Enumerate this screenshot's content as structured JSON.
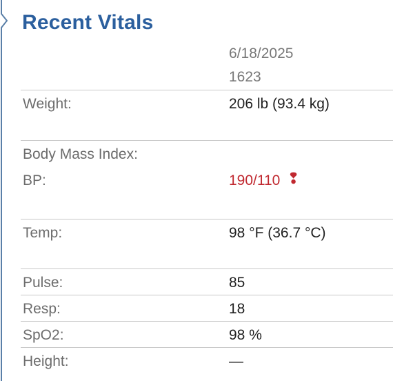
{
  "panel": {
    "title": "Recent Vitals",
    "column_date": "6/18/2025",
    "column_time": "1623"
  },
  "vitals": [
    {
      "label": "Weight:",
      "value": "206 lb (93.4 kg)",
      "abnormal": false
    },
    {
      "label": "Body Mass Index:",
      "value": "",
      "abnormal": false
    },
    {
      "label": "BP:",
      "value": "190/110",
      "abnormal": true,
      "flag_icon": "exclamation-icon"
    },
    {
      "label": "Temp:",
      "value": "98 °F (36.7 °C)",
      "abnormal": false
    },
    {
      "label": "Pulse:",
      "value": "85",
      "abnormal": false
    },
    {
      "label": "Resp:",
      "value": "18",
      "abnormal": false
    },
    {
      "label": "SpO2:",
      "value": "98 %",
      "abnormal": false
    },
    {
      "label": "Height:",
      "value": "—",
      "abnormal": false
    }
  ],
  "colors": {
    "title": "#2b5f9e",
    "abnormal": "#c0282f",
    "label": "#6c6c6c",
    "divider": "#c8c8c8"
  }
}
